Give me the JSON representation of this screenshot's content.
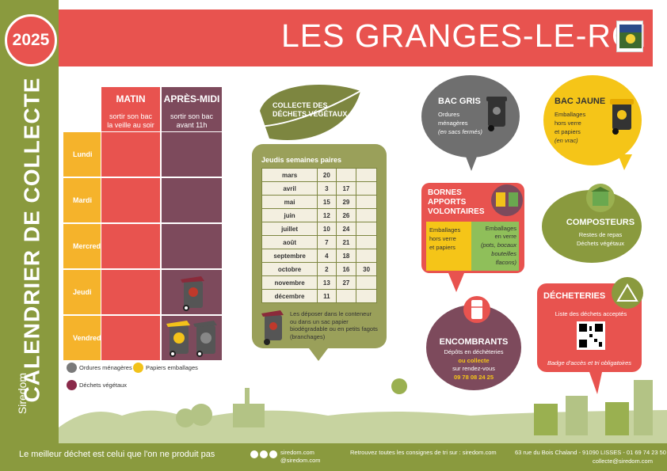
{
  "year": "2025",
  "title": "CALENDRIER DE COLLECTE",
  "town": "LES GRANGES-LE-ROI",
  "brand": "Siredom",
  "schedule": {
    "morning_label": "MATIN",
    "morning_sub": "sortir son bac la veille au soir",
    "afternoon_label": "APRÈS-MIDI",
    "afternoon_sub": "sortir son bac avant 11h",
    "days": [
      "Lundi",
      "Mardi",
      "Mercredi",
      "Jeudi",
      "Vendredi"
    ]
  },
  "legend": {
    "om": "Ordures ménagères",
    "pe": "Papiers emballages",
    "dv": "Déchets végétaux"
  },
  "vegetal": {
    "title": "COLLECTE DES DÉCHETS VÉGÉTAUX",
    "subtitle": "Jeudis semaines paires",
    "rows": [
      {
        "month": "mars",
        "d1": "20",
        "d2": "",
        "d3": ""
      },
      {
        "month": "avril",
        "d1": "3",
        "d2": "17",
        "d3": ""
      },
      {
        "month": "mai",
        "d1": "15",
        "d2": "29",
        "d3": ""
      },
      {
        "month": "juin",
        "d1": "12",
        "d2": "26",
        "d3": ""
      },
      {
        "month": "juillet",
        "d1": "10",
        "d2": "24",
        "d3": ""
      },
      {
        "month": "août",
        "d1": "7",
        "d2": "21",
        "d3": ""
      },
      {
        "month": "septembre",
        "d1": "4",
        "d2": "18",
        "d3": ""
      },
      {
        "month": "octobre",
        "d1": "2",
        "d2": "16",
        "d3": "30"
      },
      {
        "month": "novembre",
        "d1": "13",
        "d2": "27",
        "d3": ""
      },
      {
        "month": "décembre",
        "d1": "11",
        "d2": "",
        "d3": ""
      }
    ],
    "note": "Les déposer dans le conteneur ou dans un sac papier biodégradable ou en petits fagots (branchages)"
  },
  "bac_gris": {
    "title": "BAC GRIS",
    "line1": "Ordures",
    "line2": "ménagères",
    "line3": "(en sacs fermés)"
  },
  "bac_jaune": {
    "title": "BAC JAUNE",
    "line1": "Emballages",
    "line2": "hors verre",
    "line3": "et papiers",
    "line4": "(en vrac)"
  },
  "bornes": {
    "title1": "BORNES",
    "title2": "APPORTS",
    "title3": "VOLONTAIRES",
    "left1": "Emballages",
    "left2": "hors verre",
    "left3": "et papiers",
    "right1": "Emballages",
    "right2": "en verre",
    "right3": "(pots, bocaux",
    "right4": "bouteilles",
    "right5": "flacons)"
  },
  "composteurs": {
    "title": "COMPOSTEURS",
    "line1": "Restes de repas",
    "line2": "Déchets végétaux"
  },
  "decheteries": {
    "title": "DÉCHETERIES",
    "line1": "Liste des déchets acceptés",
    "line2": "Badge d'accès et tri obligatoires"
  },
  "encombrants": {
    "title": "ENCOMBRANTS",
    "line1": "Dépôts en déchèteries",
    "line2": "ou collecte",
    "line3": "sur rendez-vous",
    "phone": "09 78 08 24 25"
  },
  "footer": {
    "slogan": "Le meilleur déchet est celui que l'on ne produit pas",
    "site": "siredom.com",
    "handle": "@siredom.com",
    "retrouvez": "Retrouvez toutes les consignes de tri sur : siredom.com",
    "address": "63 rue du Bois Chaland - 91090 LISSES - 01 69 74 23 50",
    "email": "collecte@siredom.com"
  },
  "colors": {
    "red": "#e8534f",
    "olive": "#8a9a3e",
    "plum": "#7d4a5c",
    "yellow": "#f5b32b",
    "grey": "#6f6f6f",
    "sage": "#9aa05a"
  }
}
